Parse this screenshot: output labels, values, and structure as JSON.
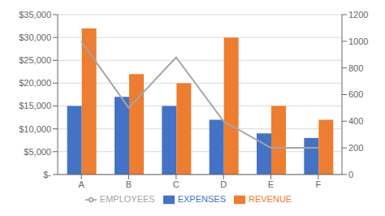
{
  "chart_data": {
    "type": "bar",
    "categories": [
      "A",
      "B",
      "C",
      "D",
      "E",
      "F"
    ],
    "series": [
      {
        "name": "EXPENSES",
        "color": "#4472C4",
        "values": [
          15000,
          17000,
          15000,
          12000,
          9000,
          8000
        ]
      },
      {
        "name": "REVENUE",
        "color": "#ED7D31",
        "values": [
          32000,
          22000,
          20000,
          30000,
          15000,
          12000
        ]
      },
      {
        "name": "EMPLOYEES",
        "color": "#A5A5A5",
        "values": [
          1000,
          500,
          880,
          400,
          200,
          200
        ],
        "type": "line",
        "axis": "y2"
      }
    ],
    "ylim": [
      0,
      35000
    ],
    "yticks": [
      {
        "value": 0,
        "label": "$-"
      },
      {
        "value": 5000,
        "label": "$5,000"
      },
      {
        "value": 10000,
        "label": "$10,000"
      },
      {
        "value": 15000,
        "label": "$15,000"
      },
      {
        "value": 20000,
        "label": "$20,000"
      },
      {
        "value": 25000,
        "label": "$25,000"
      },
      {
        "value": 30000,
        "label": "$30,000"
      },
      {
        "value": 35000,
        "label": "$35,000"
      }
    ],
    "y2lim": [
      0,
      1200
    ],
    "y2ticks": [
      0,
      200,
      400,
      600,
      800,
      1000,
      1200
    ],
    "grid": true,
    "legend": "bottom"
  }
}
